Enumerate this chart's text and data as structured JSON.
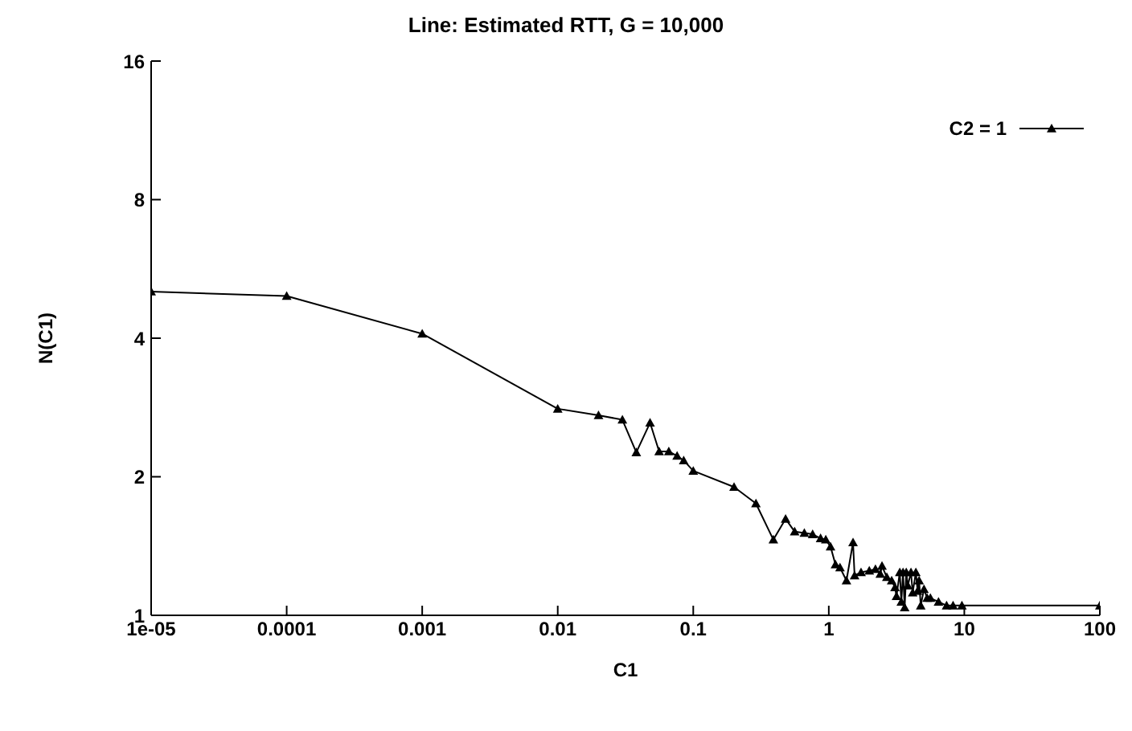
{
  "chart_data": {
    "type": "line",
    "title": "Line: Estimated RTT, G = 10,000",
    "xlabel": "C1",
    "ylabel": "N(C1)",
    "log": "xy",
    "grid": false,
    "legend": "top right",
    "marker": "triangle",
    "line_style": "solid",
    "xlim": [
      1e-05,
      100
    ],
    "xticks": [
      {
        "value": 1e-05,
        "label": "1e-05"
      },
      0.0001,
      0.001,
      0.01,
      0.1,
      1,
      10,
      100
    ],
    "ylim": [
      1,
      16
    ],
    "yticks": [
      1,
      2,
      4,
      8,
      16
    ],
    "x": [
      1e-05,
      0.0001,
      0.001,
      0.01,
      0.02,
      0.03,
      0.038,
      0.048,
      0.056,
      0.066,
      0.076,
      0.085,
      0.1,
      0.2,
      0.29,
      0.39,
      0.48,
      0.56,
      0.66,
      0.76,
      0.87,
      0.95,
      1.03,
      1.12,
      1.21,
      1.35,
      1.51,
      1.55,
      1.73,
      1.99,
      2.21,
      2.4,
      2.47,
      2.68,
      2.91,
      3.08,
      3.16,
      3.34,
      3.43,
      3.53,
      3.63,
      3.73,
      3.83,
      4.04,
      4.16,
      4.39,
      4.52,
      4.64,
      4.77,
      5.04,
      5.32,
      5.62,
      6.45,
      7.4,
      8.26,
      9.6,
      100
    ],
    "series": [
      {
        "name": "C2 = 1",
        "color": "#000000",
        "values": [
          5.05,
          4.94,
          4.09,
          2.81,
          2.72,
          2.66,
          2.26,
          2.62,
          2.27,
          2.27,
          2.22,
          2.17,
          2.06,
          1.9,
          1.75,
          1.46,
          1.62,
          1.52,
          1.51,
          1.5,
          1.47,
          1.46,
          1.41,
          1.29,
          1.27,
          1.19,
          1.44,
          1.22,
          1.24,
          1.25,
          1.26,
          1.23,
          1.28,
          1.21,
          1.19,
          1.15,
          1.1,
          1.24,
          1.07,
          1.24,
          1.04,
          1.24,
          1.16,
          1.24,
          1.12,
          1.24,
          1.13,
          1.19,
          1.05,
          1.14,
          1.09,
          1.09,
          1.07,
          1.05,
          1.05,
          1.05,
          1.05
        ]
      }
    ]
  }
}
